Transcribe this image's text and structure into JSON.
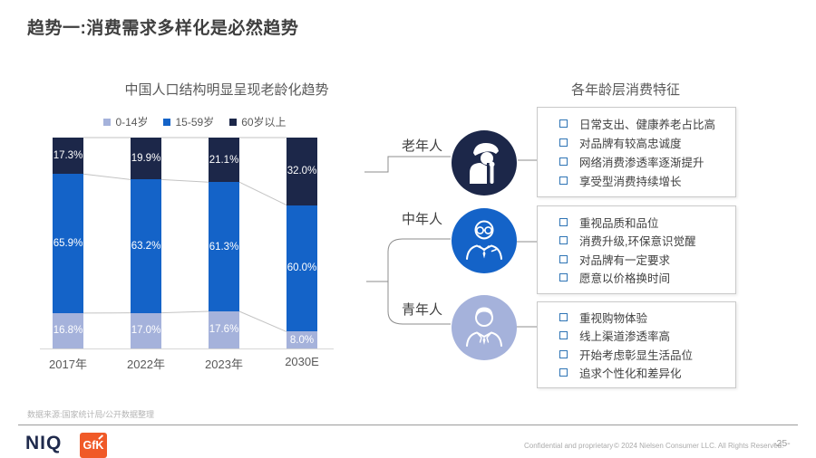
{
  "slide": {
    "title": "趋势一:消费需求多样化是必然趋势",
    "footnote": "数据来源:国家统计局/公开数据整理",
    "footer": {
      "brand_niq": "NIQ",
      "brand_niq_color": "#1F2A4C",
      "brand_gfk": "GfK",
      "brand_gfk_color": "#F05A28",
      "confidential": "Confidential and proprietary",
      "copyright": "© 2024 Nielsen Consumer LLC. All Rights Reserved.",
      "page": "-25-"
    }
  },
  "chart_data": {
    "type": "bar",
    "stacked": true,
    "percent": true,
    "title": "中国人口结构明显呈现老龄化趋势",
    "categories": [
      "2017年",
      "2022年",
      "2023年",
      "2030E"
    ],
    "series": [
      {
        "name": "0-14岁",
        "color": "#A5B2DB",
        "values": [
          16.8,
          17.0,
          17.6,
          8.0
        ]
      },
      {
        "name": "15-59岁",
        "color": "#1463C8",
        "values": [
          65.9,
          63.2,
          61.3,
          60.0
        ]
      },
      {
        "name": "60岁以上",
        "color": "#1C2749",
        "values": [
          17.3,
          19.9,
          21.1,
          32.0
        ]
      }
    ],
    "legend_position": "top",
    "value_suffix": "%",
    "ylim": [
      0,
      100
    ],
    "grid": false
  },
  "right_panel": {
    "title": "各年龄层消费特征",
    "groups": [
      {
        "label": "老年人",
        "color": "#1C2749",
        "icon": "elderly-person-icon",
        "items": [
          "日常支出、健康养老占比高",
          "对品牌有较高忠诚度",
          "网络消费渗透率逐渐提升",
          "享受型消费持续增长"
        ]
      },
      {
        "label": "中年人",
        "color": "#1463C8",
        "icon": "middle-aged-person-icon",
        "items": [
          "重视品质和品位",
          "消费升级,环保意识觉醒",
          "对品牌有一定要求",
          "愿意以价格换时间"
        ]
      },
      {
        "label": "青年人",
        "color": "#A5B2DB",
        "icon": "young-person-icon",
        "items": [
          "重视购物体验",
          "线上渠道渗透率高",
          "开始考虑彰显生活品位",
          "追求个性化和差异化"
        ]
      }
    ]
  }
}
